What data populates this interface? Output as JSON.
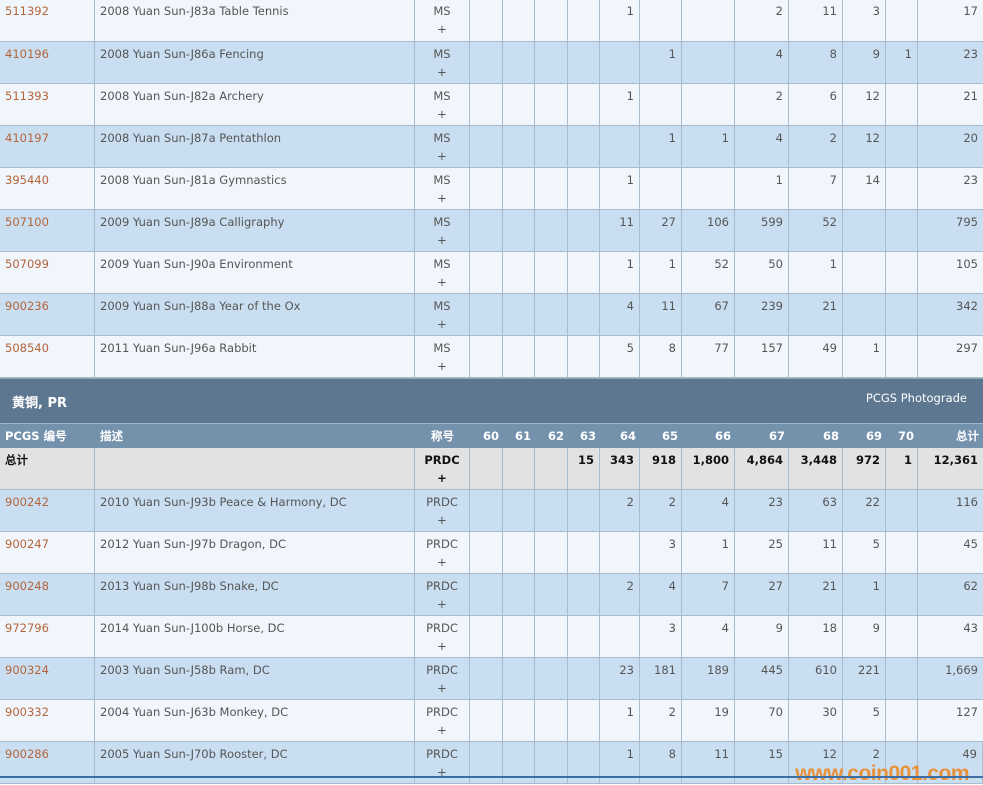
{
  "grades": [
    "60",
    "61",
    "62",
    "63",
    "64",
    "65",
    "66",
    "67",
    "68",
    "69",
    "70"
  ],
  "ms_section": {
    "rows": [
      {
        "id": "511392",
        "desc": "2008 Yuan Sun-J83a Table Tennis",
        "designation": "MS",
        "plus": "+",
        "counts": [
          "",
          "",
          "",
          "",
          "1",
          "",
          "",
          "2",
          "11",
          "3",
          ""
        ],
        "total": "17"
      },
      {
        "id": "410196",
        "desc": "2008 Yuan Sun-J86a Fencing",
        "designation": "MS",
        "plus": "+",
        "counts": [
          "",
          "",
          "",
          "",
          "",
          "1",
          "",
          "4",
          "8",
          "9",
          "1"
        ],
        "total": "23"
      },
      {
        "id": "511393",
        "desc": "2008 Yuan Sun-J82a Archery",
        "designation": "MS",
        "plus": "+",
        "counts": [
          "",
          "",
          "",
          "",
          "1",
          "",
          "",
          "2",
          "6",
          "12",
          ""
        ],
        "total": "21"
      },
      {
        "id": "410197",
        "desc": "2008 Yuan Sun-J87a Pentathlon",
        "designation": "MS",
        "plus": "+",
        "counts": [
          "",
          "",
          "",
          "",
          "",
          "1",
          "1",
          "4",
          "2",
          "12",
          ""
        ],
        "total": "20"
      },
      {
        "id": "395440",
        "desc": "2008 Yuan Sun-J81a Gymnastics",
        "designation": "MS",
        "plus": "+",
        "counts": [
          "",
          "",
          "",
          "",
          "1",
          "",
          "",
          "1",
          "7",
          "14",
          ""
        ],
        "total": "23"
      },
      {
        "id": "507100",
        "desc": "2009 Yuan Sun-J89a Calligraphy",
        "designation": "MS",
        "plus": "+",
        "counts": [
          "",
          "",
          "",
          "",
          "11",
          "27",
          "106",
          "599",
          "52",
          "",
          ""
        ],
        "total": "795"
      },
      {
        "id": "507099",
        "desc": "2009 Yuan Sun-J90a Environment",
        "designation": "MS",
        "plus": "+",
        "counts": [
          "",
          "",
          "",
          "",
          "1",
          "1",
          "52",
          "50",
          "1",
          "",
          ""
        ],
        "total": "105"
      },
      {
        "id": "900236",
        "desc": "2009 Yuan Sun-J88a Year of the Ox",
        "designation": "MS",
        "plus": "+",
        "counts": [
          "",
          "",
          "",
          "",
          "4",
          "11",
          "67",
          "239",
          "21",
          "",
          ""
        ],
        "total": "342"
      },
      {
        "id": "508540",
        "desc": "2011 Yuan Sun-J96a Rabbit",
        "designation": "MS",
        "plus": "+",
        "counts": [
          "",
          "",
          "",
          "",
          "5",
          "8",
          "77",
          "157",
          "49",
          "1",
          ""
        ],
        "total": "297"
      }
    ]
  },
  "pr_section": {
    "title": "黄铜, PR",
    "right_label": "PCGS Photograde",
    "headers": {
      "id": "PCGS 编号",
      "desc": "描述",
      "designation": "称号",
      "total": "总计"
    },
    "total_row": {
      "id": "总计",
      "desc": "",
      "designation": "PRDC",
      "plus": "+",
      "counts": [
        "",
        "",
        "",
        "15",
        "343",
        "918",
        "1,800",
        "4,864",
        "3,448",
        "972",
        "1"
      ],
      "total": "12,361"
    },
    "rows": [
      {
        "id": "900242",
        "desc": "2010 Yuan Sun-J93b Peace & Harmony, DC",
        "designation": "PRDC",
        "plus": "+",
        "counts": [
          "",
          "",
          "",
          "",
          "2",
          "2",
          "4",
          "23",
          "63",
          "22",
          ""
        ],
        "total": "116"
      },
      {
        "id": "900247",
        "desc": "2012 Yuan Sun-J97b Dragon, DC",
        "designation": "PRDC",
        "plus": "+",
        "counts": [
          "",
          "",
          "",
          "",
          "",
          "3",
          "1",
          "25",
          "11",
          "5",
          ""
        ],
        "total": "45"
      },
      {
        "id": "900248",
        "desc": "2013 Yuan Sun-J98b Snake, DC",
        "designation": "PRDC",
        "plus": "+",
        "counts": [
          "",
          "",
          "",
          "",
          "2",
          "4",
          "7",
          "27",
          "21",
          "1",
          ""
        ],
        "total": "62"
      },
      {
        "id": "972796",
        "desc": "2014 Yuan Sun-J100b Horse, DC",
        "designation": "PRDC",
        "plus": "+",
        "counts": [
          "",
          "",
          "",
          "",
          "",
          "3",
          "4",
          "9",
          "18",
          "9",
          ""
        ],
        "total": "43"
      },
      {
        "id": "900324",
        "desc": "2003 Yuan Sun-J58b Ram, DC",
        "designation": "PRDC",
        "plus": "+",
        "counts": [
          "",
          "",
          "",
          "",
          "23",
          "181",
          "189",
          "445",
          "610",
          "221",
          ""
        ],
        "total": "1,669"
      },
      {
        "id": "900332",
        "desc": "2004 Yuan Sun-J63b Monkey, DC",
        "designation": "PRDC",
        "plus": "+",
        "counts": [
          "",
          "",
          "",
          "",
          "1",
          "2",
          "19",
          "70",
          "30",
          "5",
          ""
        ],
        "total": "127"
      },
      {
        "id": "900286",
        "desc": "2005 Yuan Sun-J70b Rooster, DC",
        "designation": "PRDC",
        "plus": "+",
        "counts": [
          "",
          "",
          "",
          "",
          "1",
          "8",
          "11",
          "15",
          "12",
          "2",
          ""
        ],
        "total": "49"
      }
    ]
  },
  "watermark": "www.coin001.com",
  "colors": {
    "link": "#b5643a",
    "section_header": "#5d7791",
    "column_header": "#7592ad",
    "row_light": "#f0f6fb",
    "row_dark": "#c9dff1",
    "total_row": "#e1e2e3",
    "watermark": "#e8913a"
  }
}
